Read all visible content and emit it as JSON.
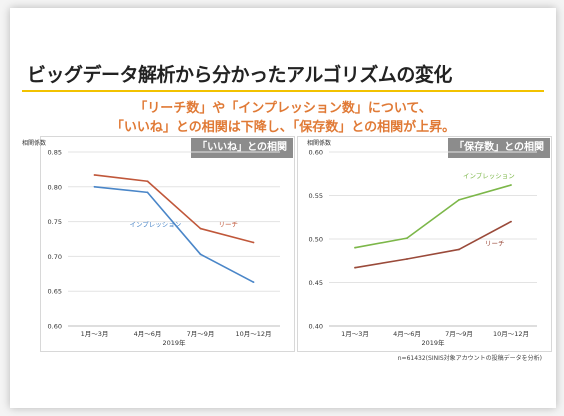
{
  "slide": {
    "title": "ビッグデータ解析から分かったアルゴリズムの変化",
    "subtitle_line1": "「リーチ数」や「インプレッション数」について、",
    "subtitle_line2": "「いいね」との相関は下降し、「保存数」との相関が上昇。",
    "footnote": "n=61432(SINIS対象アカウントの投稿データを分析)"
  },
  "colors": {
    "reach": "#c0573a",
    "impression_left": "#4a86c8",
    "impression_right": "#7cb749",
    "reach_right": "#9a4a3a",
    "accent": "#f2c200",
    "subtitle": "#e07a36",
    "header_bg": "#8c8c8c"
  },
  "chart_data": [
    {
      "type": "line",
      "title": "「いいね」との相関",
      "ylabel": "相関係数",
      "xlabel": "2019年",
      "categories": [
        "1月〜3月",
        "4月〜6月",
        "7月〜9月",
        "10月〜12月"
      ],
      "ylim": [
        0.6,
        0.85
      ],
      "yticks": [
        "0.60",
        "0.65",
        "0.70",
        "0.75",
        "0.80",
        "0.85"
      ],
      "grid": true,
      "series": [
        {
          "name": "リーチ",
          "values": [
            0.817,
            0.808,
            0.74,
            0.72
          ]
        },
        {
          "name": "インプレッション",
          "values": [
            0.8,
            0.792,
            0.703,
            0.663
          ]
        }
      ]
    },
    {
      "type": "line",
      "title": "「保存数」との相関",
      "ylabel": "相関係数",
      "xlabel": "2019年",
      "categories": [
        "1月〜3月",
        "4月〜6月",
        "7月〜9月",
        "10月〜12月"
      ],
      "ylim": [
        0.4,
        0.6
      ],
      "yticks": [
        "0.40",
        "0.45",
        "0.50",
        "0.55",
        "0.60"
      ],
      "grid": true,
      "series": [
        {
          "name": "インプレッション",
          "values": [
            0.49,
            0.501,
            0.545,
            0.562
          ]
        },
        {
          "name": "リーチ",
          "values": [
            0.467,
            0.477,
            0.488,
            0.52
          ]
        }
      ]
    }
  ]
}
